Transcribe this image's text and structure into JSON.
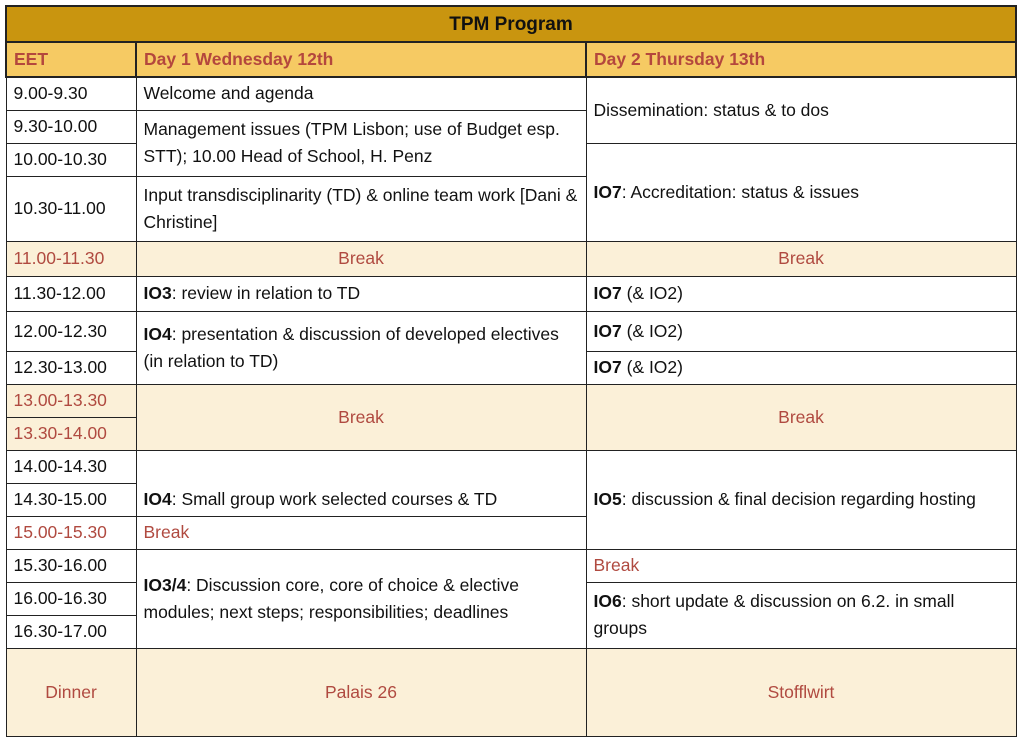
{
  "title": "TPM Program",
  "header": {
    "time": "EET",
    "day1": "Day 1 Wednesday 12th",
    "day2": "Day 2 Thursday 13th"
  },
  "times": [
    "9.00-9.30",
    "9.30-10.00",
    "10.00-10.30",
    "10.30-11.00",
    "11.00-11.30",
    "11.30-12.00",
    "12.00-12.30",
    "12.30-13.00",
    "13.00-13.30",
    "13.30-14.00",
    "14.00-14.30",
    "14.30-15.00",
    "15.00-15.30",
    "15.30-16.00",
    "16.00-16.30",
    "16.30-17.00",
    "Dinner"
  ],
  "day1": {
    "welcome": "Welcome and agenda",
    "management": "Management issues (TPM Lisbon; use of Budget esp. STT); 10.00 Head of School, H. Penz",
    "input": "Input transdisciplinarity (TD) & online team work [Dani & Christine]",
    "break1": "Break",
    "io3_code": "IO3",
    "io3_text": ": review in relation to TD",
    "io4a_code": "IO4",
    "io4a_text": ": presentation & discussion of developed electives (in relation to TD)",
    "break2": "Break",
    "io4b_code": "IO4",
    "io4b_text": ": Small group work selected courses & TD",
    "break3": "Break",
    "io34_code": "IO3/4",
    "io34_text": ": Discussion core, core of choice & elective modules; next steps; responsibilities; deadlines",
    "dinner": "Palais 26"
  },
  "day2": {
    "dissemination": "Dissemination: status & to dos",
    "io7_code": "IO7",
    "io7_text": ": Accreditation: status & issues",
    "break1": "Break",
    "io7a_code": "IO7",
    "io7a_text": " (& IO2)",
    "io7b_code": "IO7",
    "io7b_text": " (& IO2)",
    "io7c_code": "IO7",
    "io7c_text": " (& IO2)",
    "break2": "Break",
    "io5_code": "IO5",
    "io5_text": ": discussion & final decision regarding hosting",
    "break3": "Break",
    "io6_code": "IO6",
    "io6_text": ": short update & discussion on 6.2. in small groups",
    "dinner": "Stofflwirt"
  }
}
